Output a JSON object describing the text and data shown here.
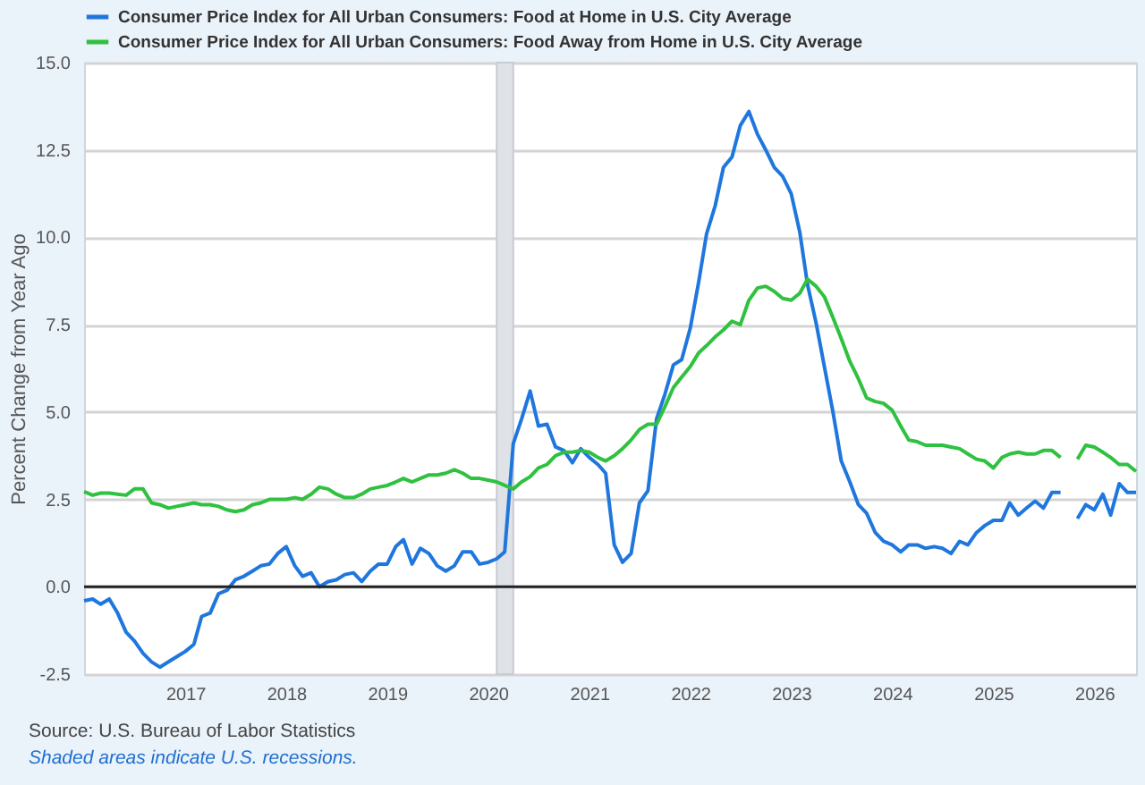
{
  "chart_data": {
    "type": "line",
    "ylabel": "Percent Change from Year Ago",
    "annotations": [
      "Source: U.S. Bureau of Labor Statistics",
      "Shaded areas indicate U.S. recessions."
    ],
    "x": [
      "2016-01",
      "2016-02",
      "2016-03",
      "2016-04",
      "2016-05",
      "2016-06",
      "2016-07",
      "2016-08",
      "2016-09",
      "2016-10",
      "2016-11",
      "2016-12",
      "2017-01",
      "2017-02",
      "2017-03",
      "2017-04",
      "2017-05",
      "2017-06",
      "2017-07",
      "2017-08",
      "2017-09",
      "2017-10",
      "2017-11",
      "2017-12",
      "2018-01",
      "2018-02",
      "2018-03",
      "2018-04",
      "2018-05",
      "2018-06",
      "2018-07",
      "2018-08",
      "2018-09",
      "2018-10",
      "2018-11",
      "2018-12",
      "2019-01",
      "2019-02",
      "2019-03",
      "2019-04",
      "2019-05",
      "2019-06",
      "2019-07",
      "2019-08",
      "2019-09",
      "2019-10",
      "2019-11",
      "2019-12",
      "2020-01",
      "2020-02",
      "2020-03",
      "2020-04",
      "2020-05",
      "2020-06",
      "2020-07",
      "2020-08",
      "2020-09",
      "2020-10",
      "2020-11",
      "2020-12",
      "2021-01",
      "2021-02",
      "2021-03",
      "2021-04",
      "2021-05",
      "2021-06",
      "2021-07",
      "2021-08",
      "2021-09",
      "2021-10",
      "2021-11",
      "2021-12",
      "2022-01",
      "2022-02",
      "2022-03",
      "2022-04",
      "2022-05",
      "2022-06",
      "2022-07",
      "2022-08",
      "2022-09",
      "2022-10",
      "2022-11",
      "2022-12",
      "2023-01",
      "2023-02",
      "2023-03",
      "2023-04",
      "2023-05",
      "2023-06",
      "2023-07",
      "2023-08",
      "2023-09",
      "2023-10",
      "2023-11",
      "2023-12",
      "2024-01",
      "2024-02",
      "2024-03",
      "2024-04",
      "2024-05",
      "2024-06",
      "2024-07",
      "2024-08",
      "2024-09",
      "2024-10",
      "2024-11",
      "2024-12",
      "2025-01",
      "2025-02",
      "2025-03",
      "2025-04",
      "2025-05",
      "2025-06",
      "2025-07",
      "2025-08",
      "2025-09",
      "2025-10",
      "2025-11",
      "2025-12",
      "2026-01",
      "2026-02",
      "2026-03",
      "2026-04",
      "2026-05",
      "2026-06"
    ],
    "series": [
      {
        "name": "Consumer Price Index for All Urban Consumers: Food at Home in U.S. City Average",
        "color": "#1f77dd",
        "values": [
          -0.4,
          -0.35,
          -0.5,
          -0.35,
          -0.75,
          -1.3,
          -1.55,
          -1.9,
          -2.15,
          -2.3,
          -2.15,
          -2.0,
          -1.85,
          -1.65,
          -0.85,
          -0.75,
          -0.2,
          -0.1,
          0.2,
          0.3,
          0.45,
          0.6,
          0.65,
          0.95,
          1.15,
          0.6,
          0.3,
          0.4,
          0.0,
          0.15,
          0.2,
          0.35,
          0.4,
          0.15,
          0.45,
          0.65,
          0.65,
          1.15,
          1.35,
          0.65,
          1.1,
          0.95,
          0.6,
          0.45,
          0.6,
          1.0,
          1.0,
          0.65,
          0.7,
          0.8,
          1.0,
          4.1,
          4.8,
          5.6,
          4.6,
          4.65,
          4.0,
          3.9,
          3.55,
          3.95,
          3.7,
          3.5,
          3.25,
          1.2,
          0.7,
          0.95,
          2.4,
          2.75,
          4.8,
          5.5,
          6.35,
          6.5,
          7.4,
          8.75,
          10.1,
          10.9,
          12.0,
          12.3,
          13.2,
          13.6,
          12.95,
          12.5,
          12.0,
          11.75,
          11.25,
          10.15,
          8.65,
          7.55,
          6.3,
          5.0,
          3.6,
          3.0,
          2.35,
          2.1,
          1.55,
          1.3,
          1.2,
          1.0,
          1.2,
          1.2,
          1.1,
          1.15,
          1.1,
          0.95,
          1.3,
          1.2,
          1.55,
          1.75,
          1.9,
          1.9,
          2.4,
          2.05,
          2.25,
          2.45,
          2.25,
          2.7,
          2.7,
          null,
          1.95,
          2.35,
          2.2,
          2.65,
          2.05,
          2.95,
          2.7,
          2.7
        ]
      },
      {
        "name": "Consumer Price Index for All Urban Consumers: Food Away from Home in U.S. City Average",
        "color": "#2fc13f",
        "values": [
          2.72,
          2.62,
          2.68,
          2.68,
          2.65,
          2.62,
          2.8,
          2.8,
          2.4,
          2.35,
          2.25,
          2.3,
          2.35,
          2.4,
          2.35,
          2.35,
          2.3,
          2.2,
          2.15,
          2.2,
          2.35,
          2.4,
          2.5,
          2.5,
          2.5,
          2.55,
          2.5,
          2.65,
          2.85,
          2.8,
          2.65,
          2.55,
          2.55,
          2.65,
          2.8,
          2.85,
          2.9,
          3.0,
          3.1,
          3.0,
          3.1,
          3.2,
          3.2,
          3.25,
          3.35,
          3.25,
          3.1,
          3.1,
          3.05,
          3.0,
          2.9,
          2.8,
          3.0,
          3.15,
          3.4,
          3.5,
          3.75,
          3.85,
          3.85,
          3.9,
          3.85,
          3.7,
          3.6,
          3.75,
          3.95,
          4.2,
          4.5,
          4.65,
          4.65,
          5.15,
          5.7,
          6.0,
          6.3,
          6.7,
          6.9,
          7.15,
          7.35,
          7.6,
          7.5,
          8.2,
          8.55,
          8.6,
          8.45,
          8.25,
          8.2,
          8.4,
          8.8,
          8.6,
          8.3,
          7.7,
          7.1,
          6.45,
          5.95,
          5.4,
          5.3,
          5.25,
          5.05,
          4.6,
          4.2,
          4.15,
          4.05,
          4.05,
          4.05,
          4.0,
          3.95,
          3.8,
          3.65,
          3.6,
          3.4,
          3.7,
          3.8,
          3.85,
          3.8,
          3.8,
          3.9,
          3.9,
          3.7,
          null,
          3.65,
          4.05,
          4.0,
          3.85,
          3.7,
          3.5,
          3.5,
          3.3
        ]
      }
    ],
    "xlim": [
      "2016-01",
      "2026-06"
    ],
    "xticks": [
      "2017",
      "2018",
      "2019",
      "2020",
      "2021",
      "2022",
      "2023",
      "2024",
      "2025",
      "2026"
    ],
    "ylim": [
      -2.5,
      15
    ],
    "yticks": [
      {
        "value": -2.5,
        "label": "-2.5"
      },
      {
        "value": 0,
        "label": "0.0"
      },
      {
        "value": 2.5,
        "label": "2.5"
      },
      {
        "value": 5,
        "label": "5.0"
      },
      {
        "value": 7.5,
        "label": "7.5"
      },
      {
        "value": 10,
        "label": "10.0"
      },
      {
        "value": 12.5,
        "label": "12.5"
      },
      {
        "value": 15,
        "label": "15.0"
      }
    ],
    "grid": "y",
    "legend": "top left",
    "line_style": "solid",
    "ref_lines": [
      {
        "axis": "y",
        "value": 0,
        "color": "#222222"
      }
    ],
    "bands": [
      {
        "axis": "x",
        "from": "2020-02",
        "to": "2020-04",
        "color": "#dfe3e8"
      }
    ]
  }
}
